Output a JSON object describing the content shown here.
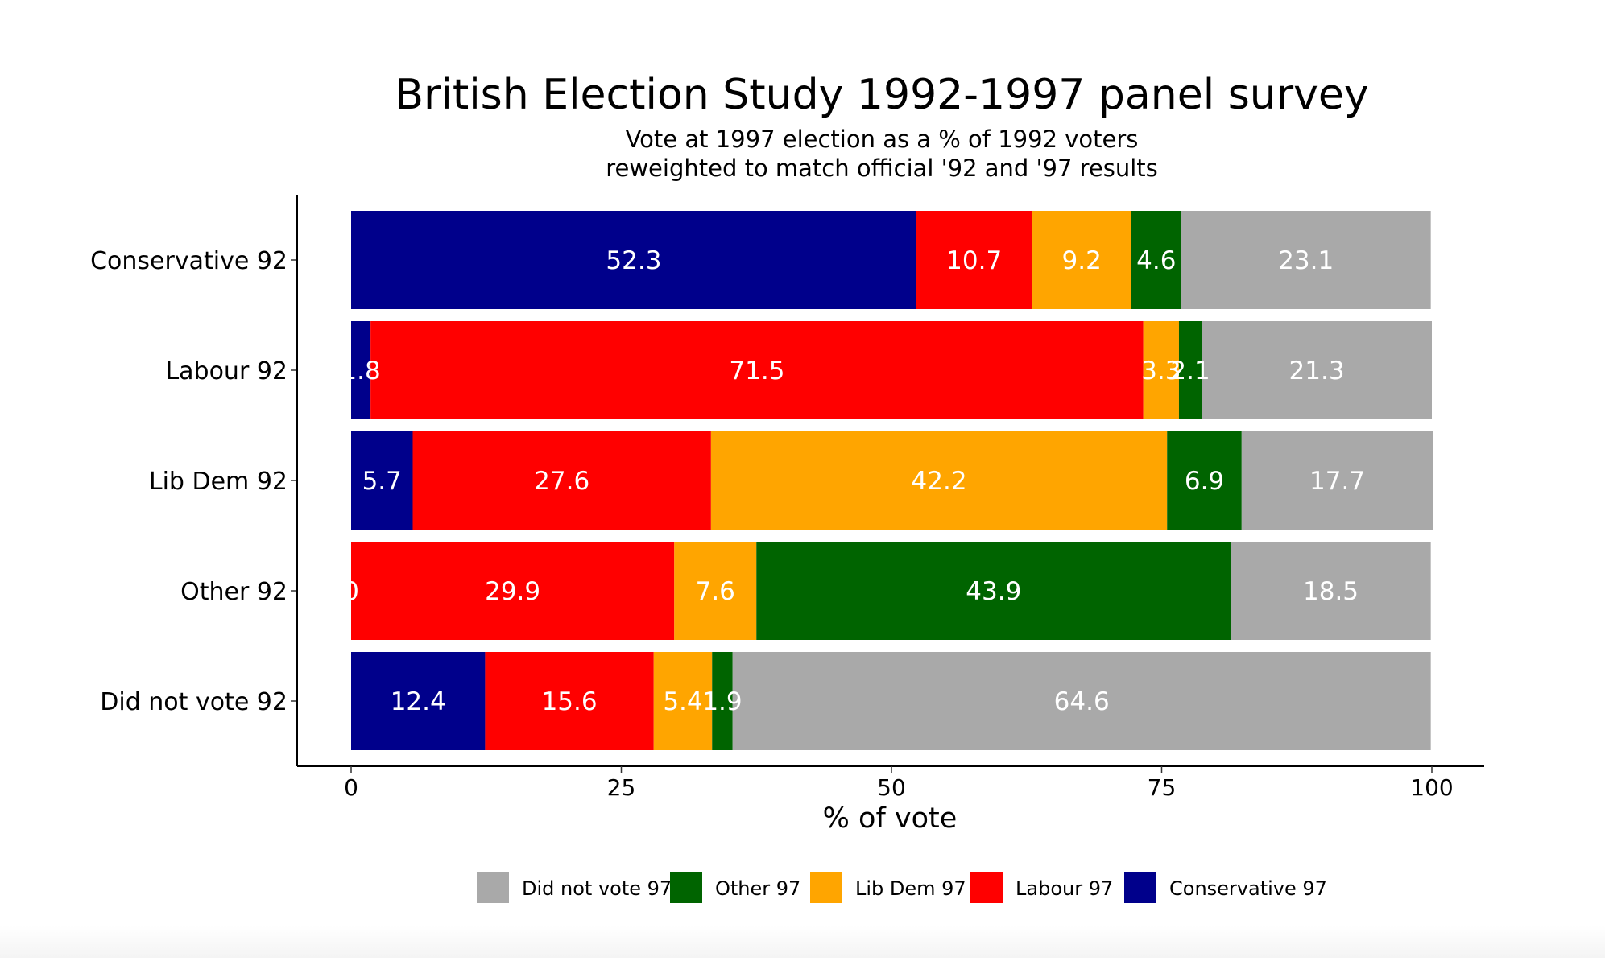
{
  "chart_data": {
    "type": "bar",
    "orientation": "horizontal",
    "stacked": true,
    "title": "British Election Study 1992-1997 panel survey",
    "subtitle_lines": [
      "Vote at 1997 election as a % of 1992 voters",
      "reweighted to match official '92 and '97 results"
    ],
    "xlabel": "% of vote",
    "ylabel": "",
    "xlim": [
      0,
      100
    ],
    "x_ticks": [
      0,
      25,
      50,
      75,
      100
    ],
    "x_tick_labels": [
      "0",
      "25",
      "50",
      "75",
      "100"
    ],
    "categories": [
      "Conservative 92",
      "Labour 92",
      "Lib Dem 92",
      "Other 92",
      "Did not vote 92"
    ],
    "series": [
      {
        "name": "Conservative 97",
        "color": "#00008B",
        "values": [
          52.3,
          1.8,
          5.7,
          0.0,
          12.4
        ],
        "labels": [
          "52.3",
          "1.8",
          "5.7",
          "0",
          "12.4"
        ]
      },
      {
        "name": "Labour 97",
        "color": "#FF0000",
        "values": [
          10.7,
          71.5,
          27.6,
          29.9,
          15.6
        ],
        "labels": [
          "10.7",
          "71.5",
          "27.6",
          "29.9",
          "15.6"
        ]
      },
      {
        "name": "Lib Dem 97",
        "color": "#FFA500",
        "values": [
          9.2,
          3.3,
          42.2,
          7.6,
          5.4
        ],
        "labels": [
          "9.2",
          "3.3",
          "42.2",
          "7.6",
          "5.4"
        ]
      },
      {
        "name": "Other 97",
        "color": "#006400",
        "values": [
          4.6,
          2.1,
          6.9,
          43.9,
          1.9
        ],
        "labels": [
          "4.6",
          "2.1",
          "6.9",
          "43.9",
          "1.9"
        ]
      },
      {
        "name": "Did not vote 97",
        "color": "#A9A9A9",
        "values": [
          23.1,
          21.3,
          17.7,
          18.5,
          64.6
        ],
        "labels": [
          "23.1",
          "21.3",
          "17.7",
          "18.5",
          "64.6"
        ]
      }
    ],
    "legend": {
      "position": "bottom",
      "order": [
        "Did not vote 97",
        "Other 97",
        "Lib Dem 97",
        "Labour 97",
        "Conservative 97"
      ]
    },
    "grid": false
  }
}
